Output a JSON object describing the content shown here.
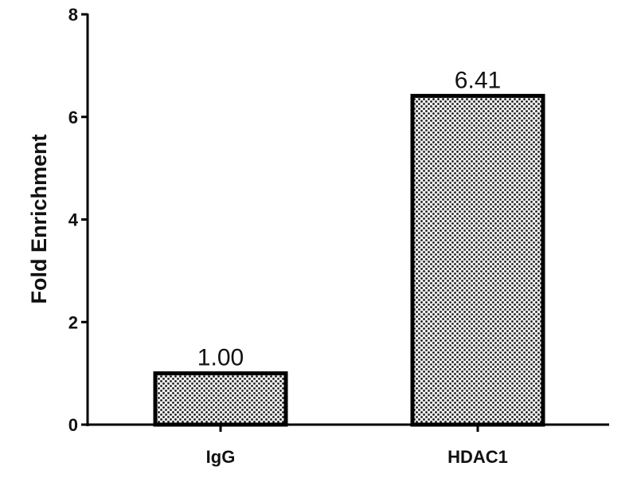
{
  "chart_data": {
    "type": "bar",
    "title": "",
    "xlabel": "",
    "ylabel": "Fold Enrichment",
    "categories": [
      "IgG",
      "HDAC1"
    ],
    "values": [
      1.0,
      6.41
    ],
    "data_labels": [
      "1.00",
      "6.41"
    ],
    "ylim": [
      0,
      8
    ],
    "yticks": [
      0,
      2,
      4,
      6,
      8
    ],
    "ytick_labels": [
      "0",
      "2",
      "4",
      "6",
      "8"
    ],
    "grid": false,
    "legend": "none",
    "bar_fill": "dotted gray pattern",
    "colors": {
      "bar_edge": "#000000",
      "dot": "#1a1a1a",
      "background": "#ffffff"
    }
  }
}
